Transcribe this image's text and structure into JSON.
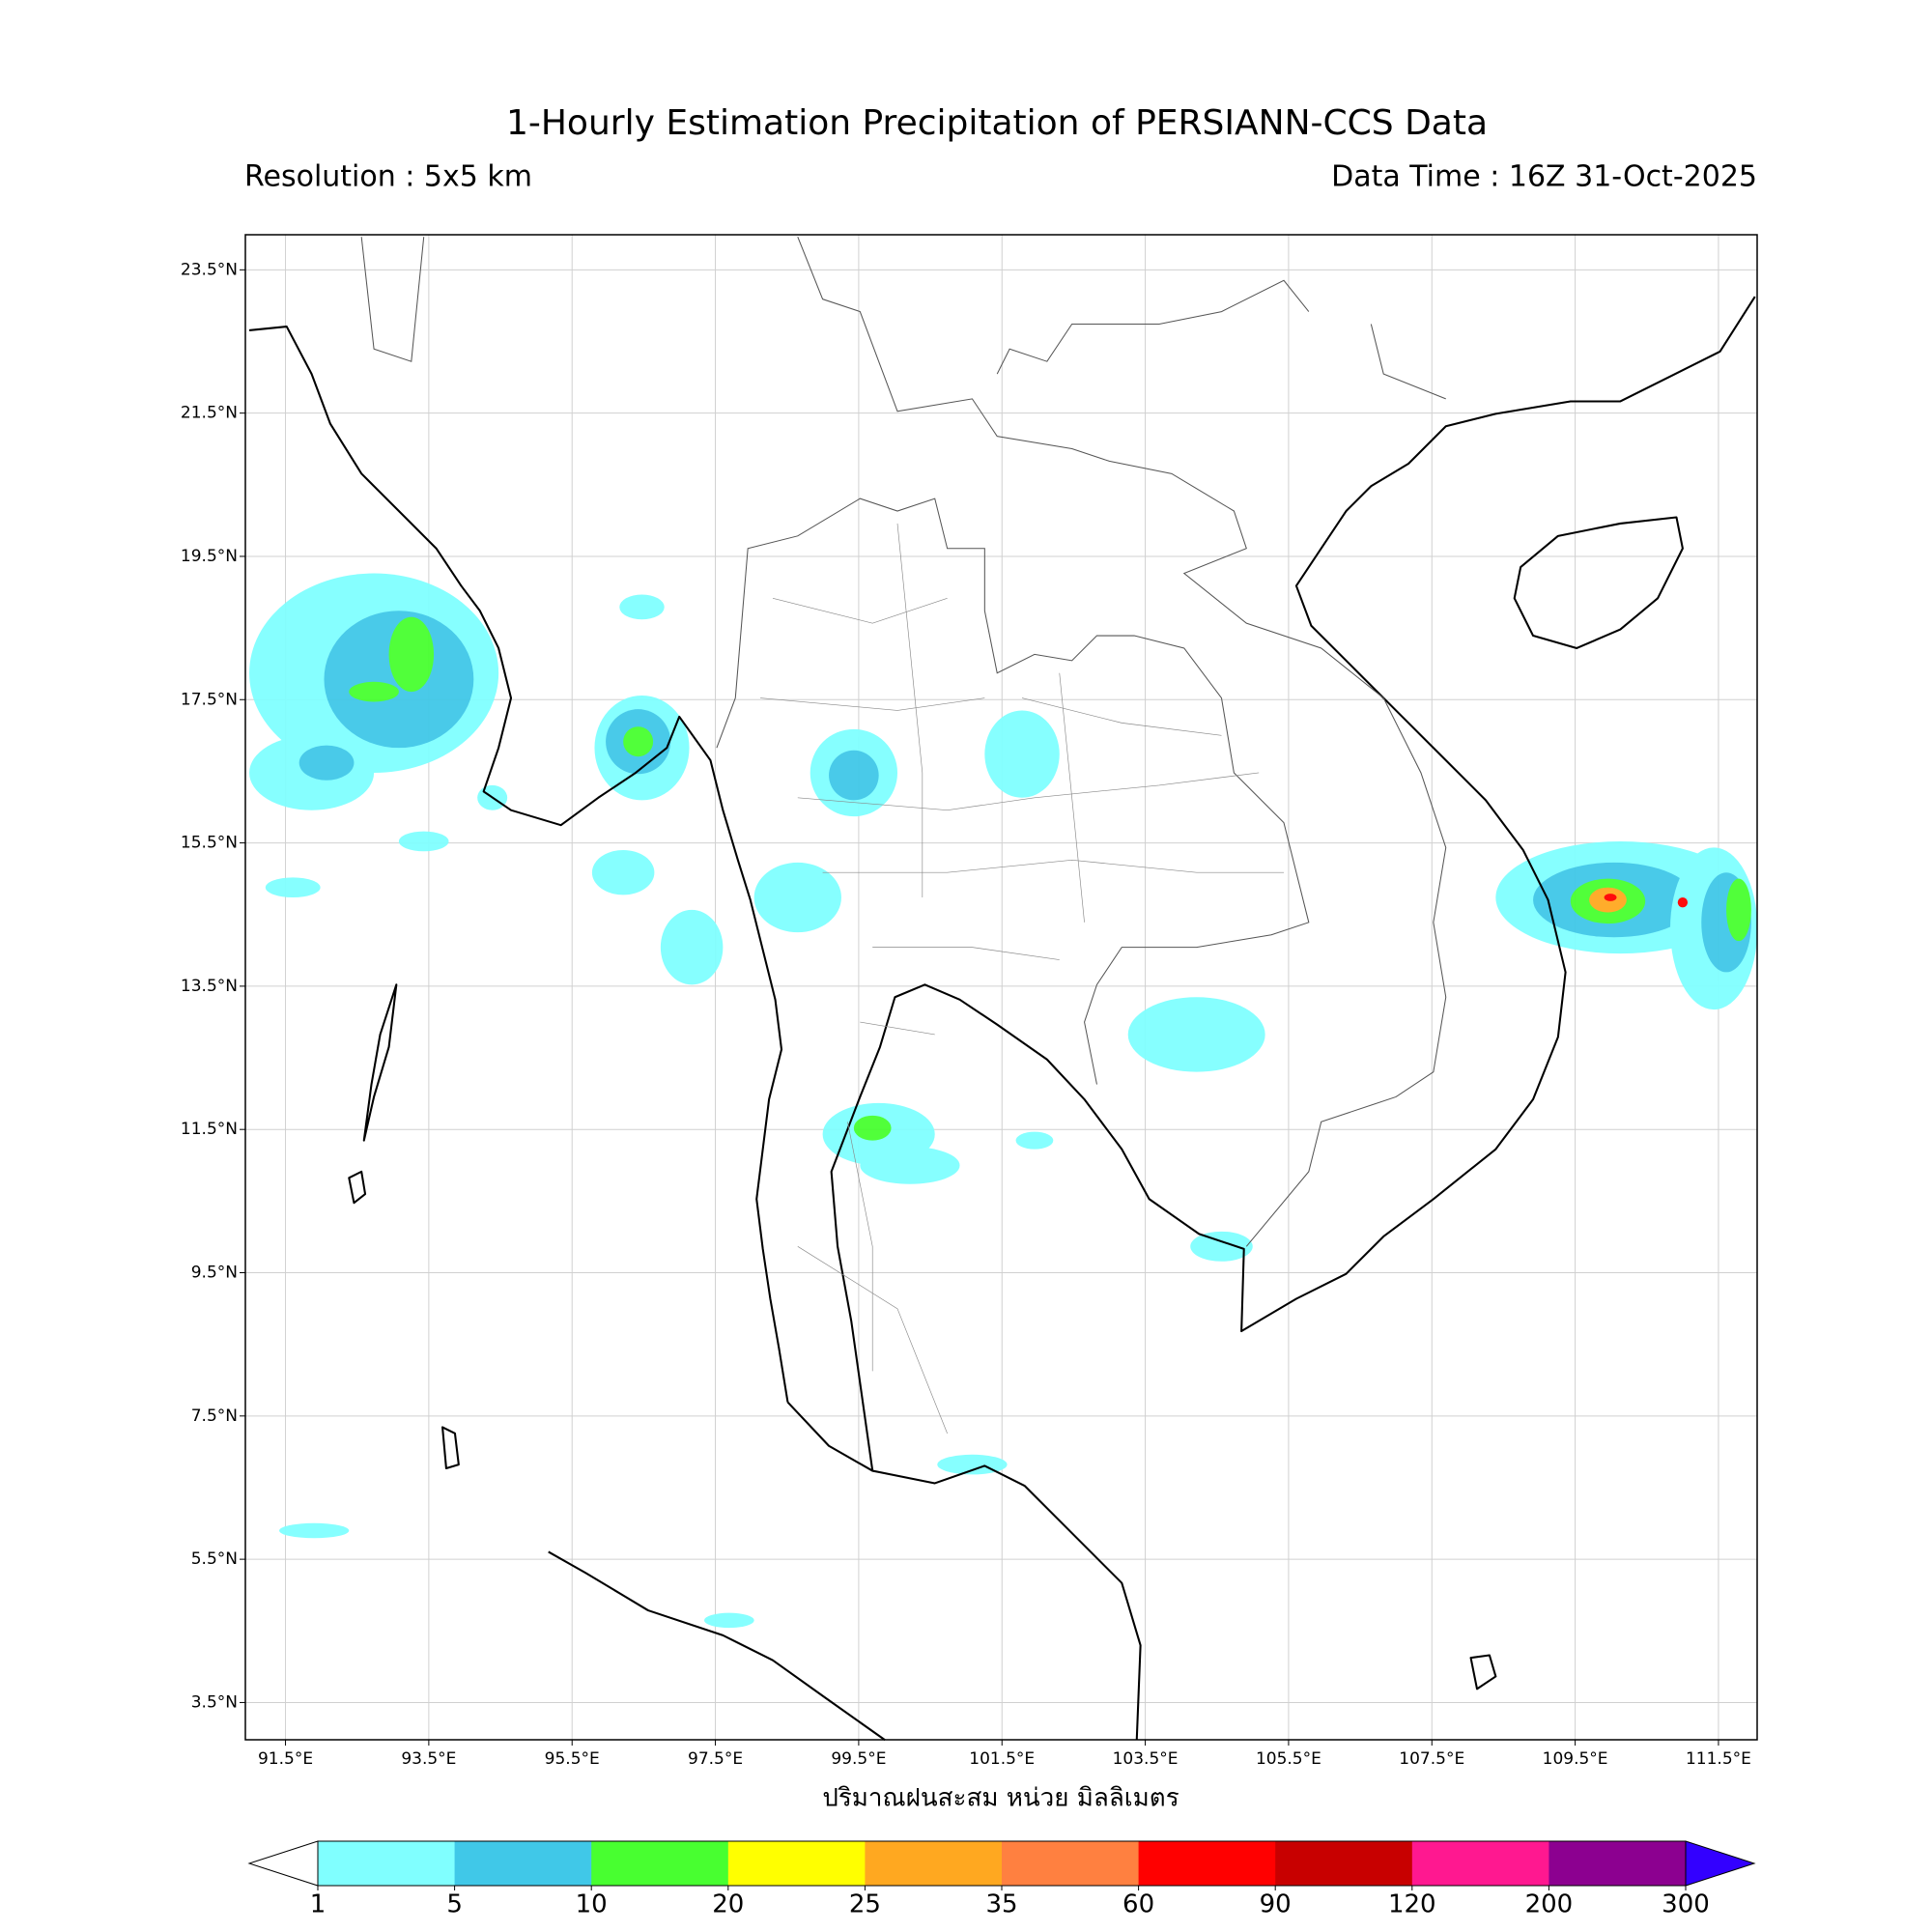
{
  "title": "1-Hourly Estimation Precipitation of PERSIANN-CCS Data",
  "resolution": "Resolution : 5x5 km",
  "data_time": "Data Time : 16Z 31-Oct-2025",
  "map": {
    "xlim": [
      90.94,
      112.04
    ],
    "ylim": [
      2.98,
      23.99
    ],
    "xticks": [
      {
        "value": 91.5,
        "label": "91.5°E"
      },
      {
        "value": 93.5,
        "label": "93.5°E"
      },
      {
        "value": 95.5,
        "label": "95.5°E"
      },
      {
        "value": 97.5,
        "label": "97.5°E"
      },
      {
        "value": 99.5,
        "label": "99.5°E"
      },
      {
        "value": 101.5,
        "label": "101.5°E"
      },
      {
        "value": 103.5,
        "label": "103.5°E"
      },
      {
        "value": 105.5,
        "label": "105.5°E"
      },
      {
        "value": 107.5,
        "label": "107.5°E"
      },
      {
        "value": 109.5,
        "label": "109.5°E"
      },
      {
        "value": 111.5,
        "label": "111.5°E"
      }
    ],
    "yticks": [
      {
        "value": 3.5,
        "label": "3.5°N"
      },
      {
        "value": 5.5,
        "label": "5.5°N"
      },
      {
        "value": 7.5,
        "label": "7.5°N"
      },
      {
        "value": 9.5,
        "label": "9.5°N"
      },
      {
        "value": 11.5,
        "label": "11.5°N"
      },
      {
        "value": 13.5,
        "label": "13.5°N"
      },
      {
        "value": 15.5,
        "label": "15.5°N"
      },
      {
        "value": 17.5,
        "label": "17.5°N"
      },
      {
        "value": 19.5,
        "label": "19.5°N"
      },
      {
        "value": 21.5,
        "label": "21.5°N"
      },
      {
        "value": 23.5,
        "label": "23.5°N"
      }
    ],
    "grid": true
  },
  "colorbar": {
    "label": "ปริมาณฝนสะสม หน่วย มิลลิเมตร",
    "levels": [
      1,
      5,
      10,
      20,
      25,
      35,
      60,
      90,
      120,
      200,
      300
    ],
    "colors": [
      "#80ffff",
      "#40c8e8",
      "#48ff30",
      "#ffff00",
      "#ffa820",
      "#ff8040",
      "#ff0000",
      "#c80000",
      "#ff1890",
      "#8c0090"
    ],
    "under_color": "#ffffff",
    "over_color": "#3300ff"
  }
}
